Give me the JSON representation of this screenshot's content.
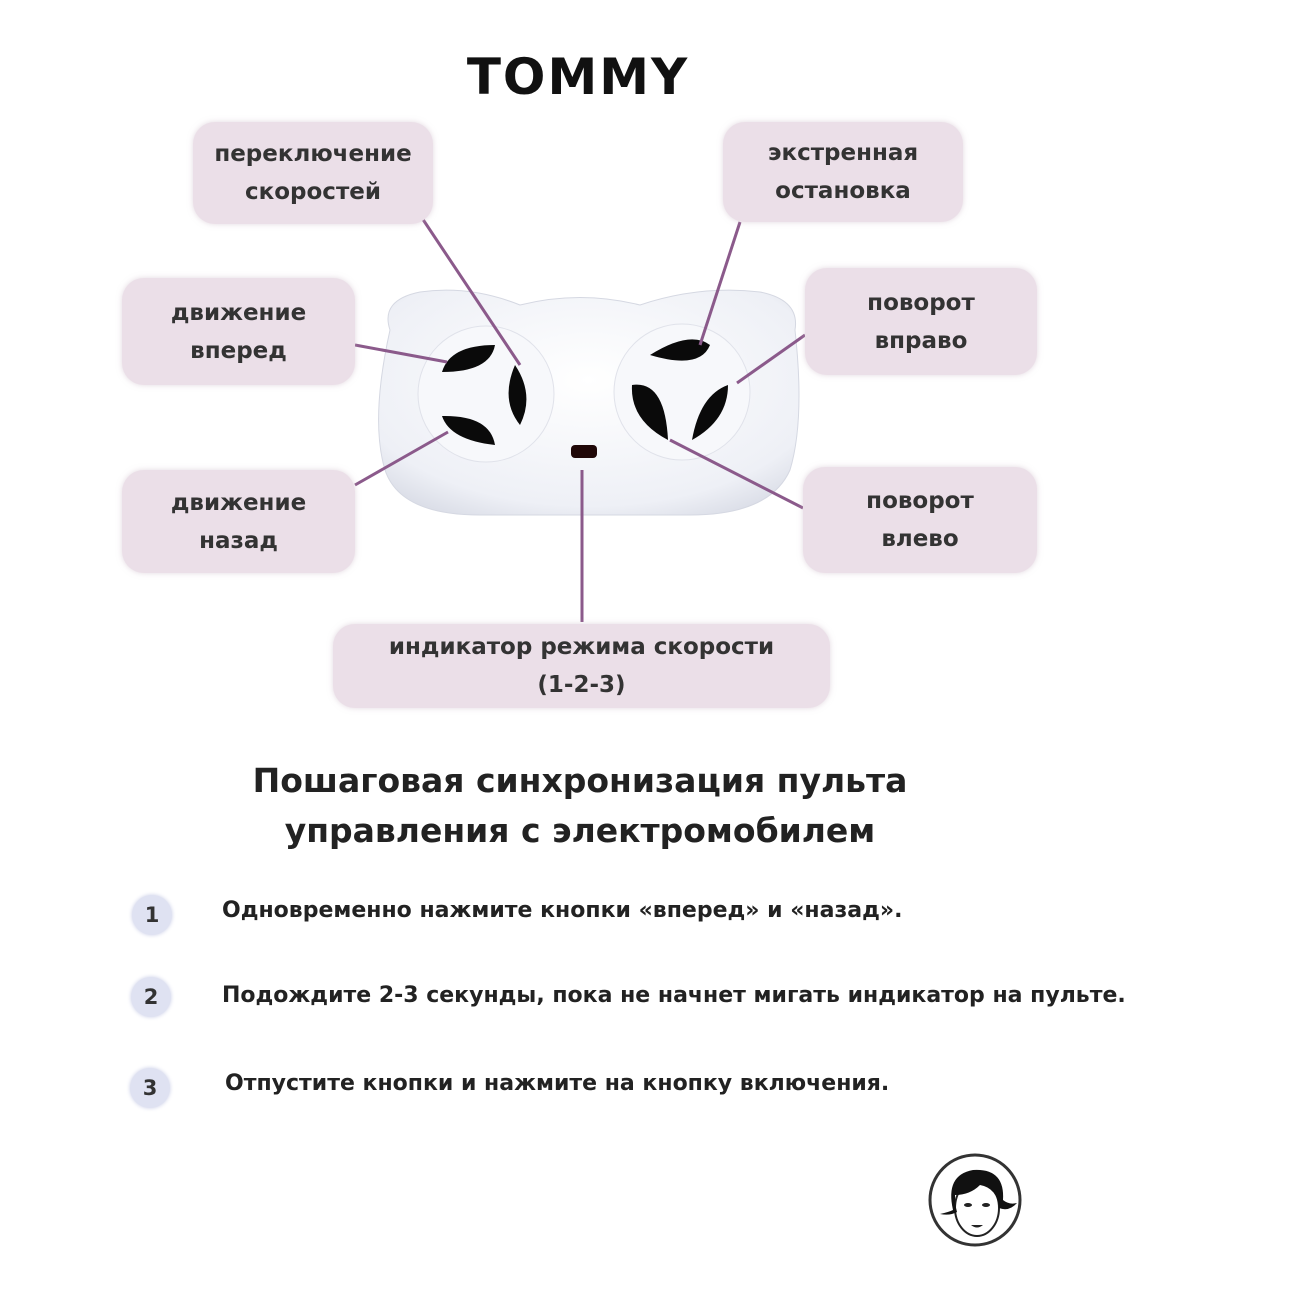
{
  "brand": {
    "logo_text": "TOMMY"
  },
  "labels": {
    "speed_switch": "переключение\nскоростей",
    "emergency_stop": "экстренная\nостановка",
    "forward": "движение\nвперед",
    "turn_right": "поворот\nвправо",
    "backward": "движение\nназад",
    "turn_left": "поворот\nвлево",
    "speed_indicator": "индикатор режима скорости\n(1-2-3)"
  },
  "colors": {
    "label_bg": "#ebdfe8",
    "leader_line": "#8b5a8b",
    "step_badge": "#dfe2f2"
  },
  "title": "Пошаговая синхронизация пульта\nуправления с электромобилем",
  "steps": [
    {
      "number": "1",
      "text": "Одновременно нажмите кнопки «вперед» и «назад»."
    },
    {
      "number": "2",
      "text": "Подождите 2-3 секунды, пока не начнет мигать индикатор на пульте."
    },
    {
      "number": "3",
      "text": "Отпустите кнопки и нажмите на кнопку включения."
    }
  ],
  "icons": {
    "remote": "remote-control-image",
    "mascot": "girl-face-logo-icon"
  }
}
